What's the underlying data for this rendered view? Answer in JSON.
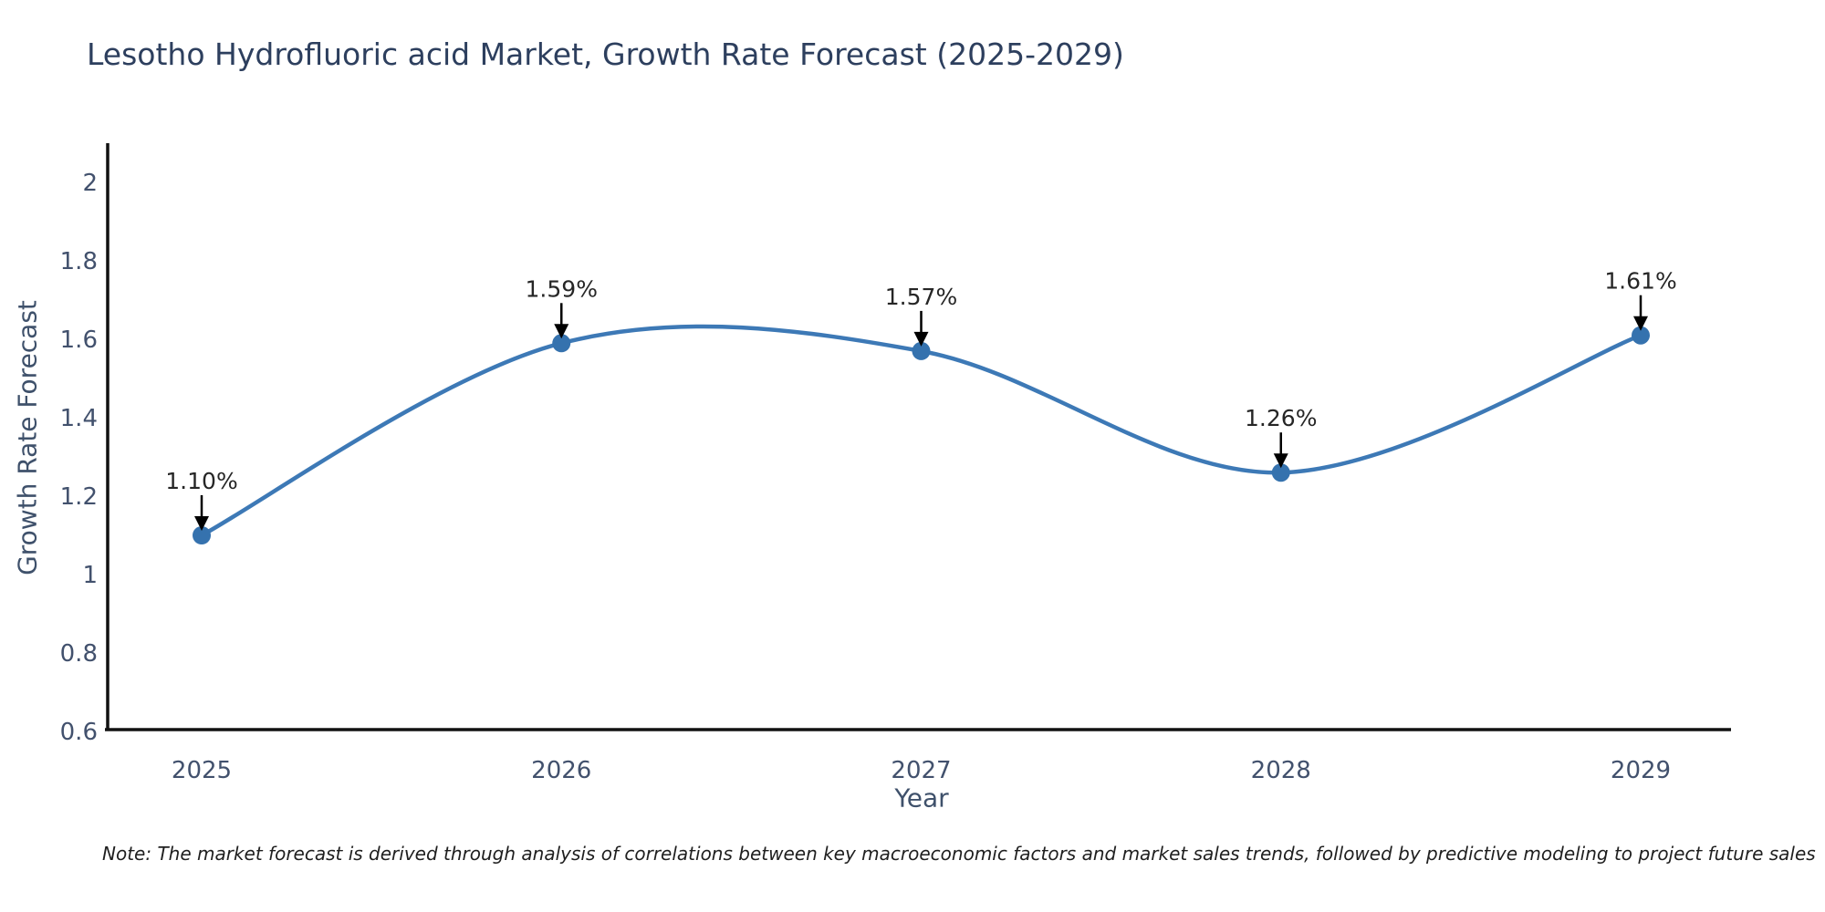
{
  "header": {
    "title": "Lesotho Hydrofluoric acid Market, Growth Rate Forecast (2025-2029)"
  },
  "chart_data": {
    "type": "line",
    "curve": "smooth",
    "x": [
      2025,
      2026,
      2027,
      2028,
      2029
    ],
    "series": [
      {
        "name": "Growth Rate Forecast",
        "values": [
          1.1,
          1.59,
          1.57,
          1.26,
          1.61
        ]
      }
    ],
    "point_labels": [
      "1.10%",
      "1.59%",
      "1.57%",
      "1.26%",
      "1.61%"
    ],
    "title": "Lesotho Hydrofluoric acid Market, Growth Rate Forecast (2025-2029)",
    "xlabel": "Year",
    "ylabel": "Growth Rate Forecast",
    "ylim": [
      0.6,
      2.0
    ],
    "yticks": [
      0.6,
      0.8,
      1,
      1.2,
      1.4,
      1.6,
      1.8,
      2
    ],
    "grid": false,
    "legend_position": "none",
    "colors": {
      "line": "#3d79b6",
      "marker": "#3572ae",
      "axis": "#111111",
      "arrow": "#000000",
      "tick_text": "#42516d",
      "annotation_text": "#262626"
    }
  },
  "footnote": {
    "text": "Note: The market forecast is derived through analysis of correlations between key macroeconomic factors and market sales trends, followed by predictive modeling to project future sales"
  }
}
